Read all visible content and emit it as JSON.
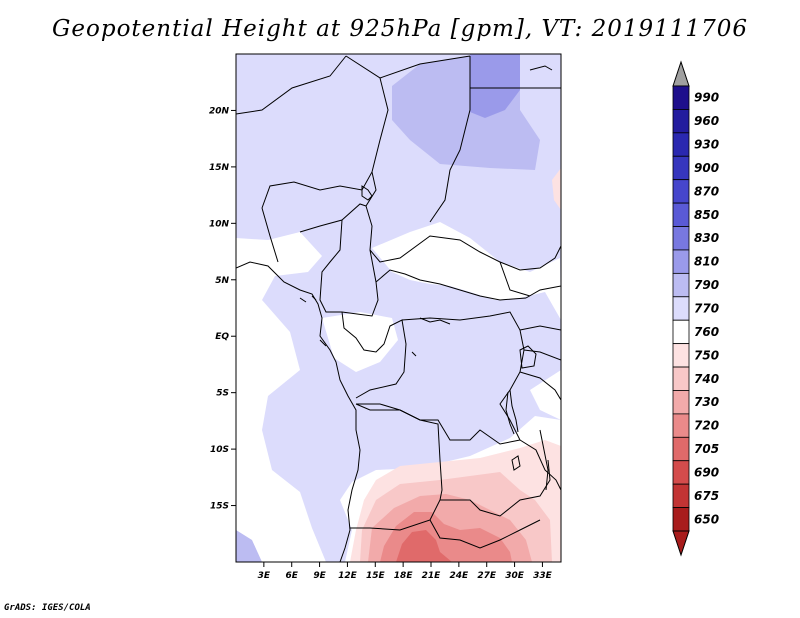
{
  "title": "Geopotential Height at 925hPa [gpm], VT: 2019111706",
  "credit": "GrADS: IGES/COLA",
  "map": {
    "lon_range": [
      0,
      35
    ],
    "lat_range": [
      -20,
      25
    ],
    "lat_ticks": [
      {
        "value": 20,
        "label": "20N"
      },
      {
        "value": 15,
        "label": "15N"
      },
      {
        "value": 10,
        "label": "10N"
      },
      {
        "value": 5,
        "label": "5N"
      },
      {
        "value": 0,
        "label": "EQ"
      },
      {
        "value": -5,
        "label": "5S"
      },
      {
        "value": -10,
        "label": "10S"
      },
      {
        "value": -15,
        "label": "15S"
      }
    ],
    "lon_ticks": [
      {
        "value": 3,
        "label": "3E"
      },
      {
        "value": 6,
        "label": "6E"
      },
      {
        "value": 9,
        "label": "9E"
      },
      {
        "value": 12,
        "label": "12E"
      },
      {
        "value": 15,
        "label": "15E"
      },
      {
        "value": 18,
        "label": "18E"
      },
      {
        "value": 21,
        "label": "21E"
      },
      {
        "value": 24,
        "label": "24E"
      },
      {
        "value": 27,
        "label": "27E"
      },
      {
        "value": 30,
        "label": "30E"
      },
      {
        "value": 33,
        "label": "33E"
      }
    ]
  },
  "colorbar": {
    "levels": [
      {
        "label": "990",
        "color": "#1e0f8c"
      },
      {
        "label": "960",
        "color": "#231c9e"
      },
      {
        "label": "930",
        "color": "#2a28b0"
      },
      {
        "label": "900",
        "color": "#3636be"
      },
      {
        "label": "870",
        "color": "#4646cc"
      },
      {
        "label": "850",
        "color": "#5a5ad6"
      },
      {
        "label": "830",
        "color": "#7878e0"
      },
      {
        "label": "810",
        "color": "#9a9aea"
      },
      {
        "label": "790",
        "color": "#bcbcf2"
      },
      {
        "label": "770",
        "color": "#dcdcfc"
      },
      {
        "label": "760",
        "color": "#ffffff"
      },
      {
        "label": "750",
        "color": "#fde2e2"
      },
      {
        "label": "740",
        "color": "#f8c8c8"
      },
      {
        "label": "730",
        "color": "#f2aaaa"
      },
      {
        "label": "720",
        "color": "#ea8a8a"
      },
      {
        "label": "705",
        "color": "#e06a6a"
      },
      {
        "label": "690",
        "color": "#d44c4c"
      },
      {
        "label": "675",
        "color": "#c23434"
      },
      {
        "label": "650",
        "color": "#a81c1c"
      }
    ],
    "top_arrow_color": "#a0a0a0",
    "bottom_arrow_color": "#a81c1c"
  },
  "fills": {
    "c770": "#dcdcfc",
    "c790": "#bcbcf2",
    "c810": "#9a9aea",
    "c760": "#ffffff",
    "c750": "#fde2e2",
    "c740": "#f8c8c8",
    "c730": "#f2aaaa",
    "c720": "#ea8a8a",
    "c705": "#e06a6a"
  }
}
